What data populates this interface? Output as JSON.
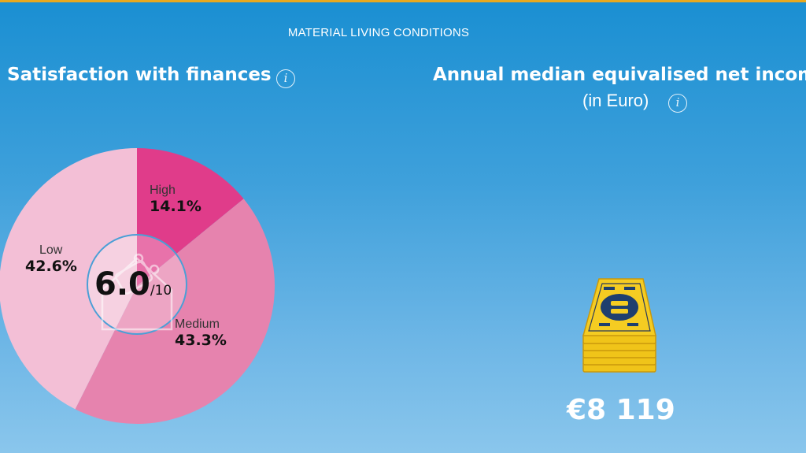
{
  "section_title": "MATERIAL LIVING CONDITIONS",
  "left_panel": {
    "title": "Satisfaction with finances",
    "info_icon": "info-icon",
    "score": "6.0",
    "score_suffix": "/10"
  },
  "right_panel": {
    "title": "Annual median equivalised net income",
    "subtitle": "(in Euro)",
    "info_icon": "info-icon",
    "value": "€8 119",
    "icon": "banknote-stack-icon"
  },
  "chart_data": {
    "type": "pie",
    "title": "Satisfaction with finances",
    "categories": [
      "High",
      "Medium",
      "Low"
    ],
    "values": [
      14.1,
      43.3,
      42.6
    ],
    "value_labels": [
      "14.1%",
      "43.3%",
      "42.6%"
    ],
    "colors": [
      "#e03c8a",
      "#e683ae",
      "#f3bfd6"
    ],
    "center_label": "6.0/10"
  }
}
